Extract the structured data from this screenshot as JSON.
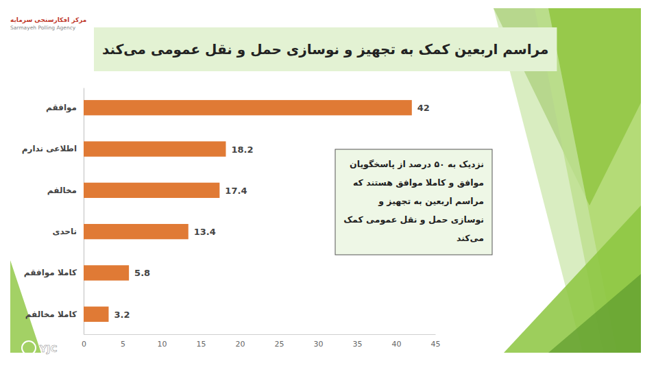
{
  "chart_data": {
    "type": "bar",
    "orientation": "horizontal",
    "title": "مراسم اربعین کمک به تجهیز و نوسازی حمل و نقل عمومی می‌کند",
    "categories": [
      "موافقم",
      "اطلاعی ندارم",
      "مخالفم",
      "ناحدی",
      "کاملا موافقم",
      "کاملا مخالفم"
    ],
    "values": [
      42,
      18.2,
      17.4,
      13.4,
      5.8,
      3.2
    ],
    "color": "#e07a35",
    "xlim": [
      0,
      45
    ],
    "xticks": [
      0,
      5,
      10,
      15,
      20,
      25,
      30,
      35,
      40,
      45
    ],
    "grid": false,
    "data_labels": true,
    "annotations": [
      "نزدیک به ۵۰ درصد از پاسخگویان موافق و کاملا موافق هستند که مراسم اربعین به تجهیز و نوسازی حمل و نقل عمومی کمک می‌کند"
    ],
    "source": [
      "مرکز افکارسنجی سرمایه",
      "Sarmayeh Polling Agency"
    ],
    "watermark": "YJC"
  }
}
